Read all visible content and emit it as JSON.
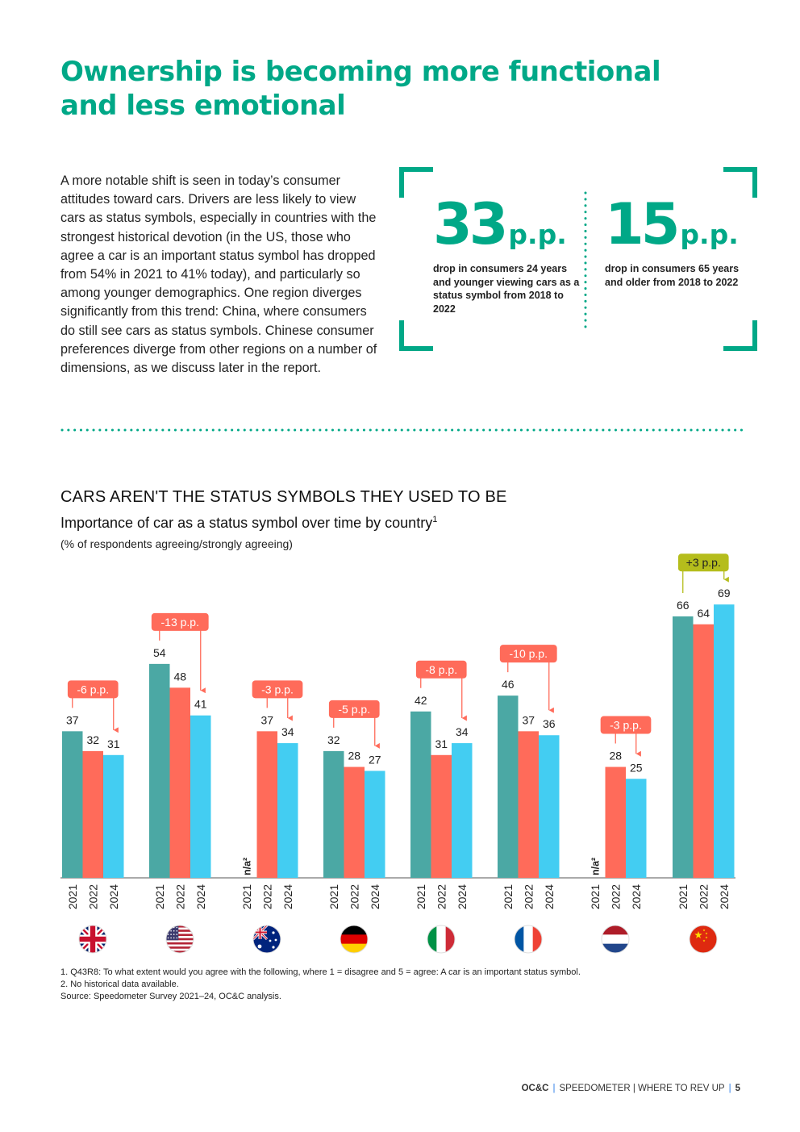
{
  "title_line1": "Ownership is becoming more functional",
  "title_line2": "and less emotional",
  "intro": "A more notable shift is seen in today’s consumer attitudes toward cars. Drivers are less likely to view cars as status symbols, especially in countries with the strongest historical devotion (in the US, those who agree a car is an important status symbol has dropped from 54% in 2021 to 41% today), and particularly so among younger demographics. One region diverges significantly from this trend: China, where consumers do still see cars as status symbols. Chinese consumer preferences diverge from other regions on a number of dimensions, as we discuss later in the report.",
  "stats": [
    {
      "value": "33",
      "unit": "p.p.",
      "desc": "drop in consumers 24 years and younger viewing cars as a status symbol from 2018 to 2022"
    },
    {
      "value": "15",
      "unit": "p.p.",
      "desc": "drop in consumers 65 years and older from 2018 to 2022"
    }
  ],
  "chart_heading": "CARS AREN'T THE STATUS SYMBOLS THEY USED TO BE",
  "chart_subheading": "Importance of car as a status symbol over time by country",
  "chart_subheading_sup": "1",
  "chart_note": "(% of respondents agreeing/strongly agreeing)",
  "chart_data": {
    "type": "bar",
    "years": [
      "2021",
      "2022",
      "2024"
    ],
    "series_colors": [
      "#4BA8A4",
      "#FF6B5A",
      "#43CDF2"
    ],
    "groups": [
      {
        "country": "UK",
        "flag": "uk-flag",
        "values": [
          37,
          32,
          31
        ],
        "change": "-6 p.p.",
        "change_type": "neg"
      },
      {
        "country": "US",
        "flag": "us-flag",
        "values": [
          54,
          48,
          41
        ],
        "change": "-13 p.p.",
        "change_type": "neg"
      },
      {
        "country": "Australia",
        "flag": "australia-flag",
        "values": [
          null,
          37,
          34
        ],
        "na": "n/a²",
        "change": "-3 p.p.",
        "change_type": "neg"
      },
      {
        "country": "Germany",
        "flag": "germany-flag",
        "values": [
          32,
          28,
          27
        ],
        "change": "-5 p.p.",
        "change_type": "neg"
      },
      {
        "country": "Italy",
        "flag": "italy-flag",
        "values": [
          42,
          31,
          34
        ],
        "change": "-8 p.p.",
        "change_type": "neg"
      },
      {
        "country": "France",
        "flag": "france-flag",
        "values": [
          46,
          37,
          36
        ],
        "change": "-10 p.p.",
        "change_type": "neg"
      },
      {
        "country": "Netherlands",
        "flag": "netherlands-flag",
        "values": [
          null,
          28,
          25
        ],
        "na": "n/a²",
        "change": "-3 p.p.",
        "change_type": "neg"
      },
      {
        "country": "China",
        "flag": "china-flag",
        "values": [
          66,
          64,
          69
        ],
        "change": "+3 p.p.",
        "change_type": "pos"
      }
    ],
    "ylim": [
      0,
      75
    ],
    "change_colors": {
      "neg": "#FF6B5A",
      "pos": "#B5BD1C"
    }
  },
  "footnotes": [
    "1. Q43R8: To what extent would you agree with the following, where 1 = disagree and 5 = agree: A car is an important status symbol.",
    "2. No historical data available.",
    "Source: Speedometer Survey 2021–24, OC&C analysis."
  ],
  "footer": {
    "brand": "OC&C",
    "section": "SPEEDOMETER | WHERE TO REV UP",
    "page": "5"
  }
}
